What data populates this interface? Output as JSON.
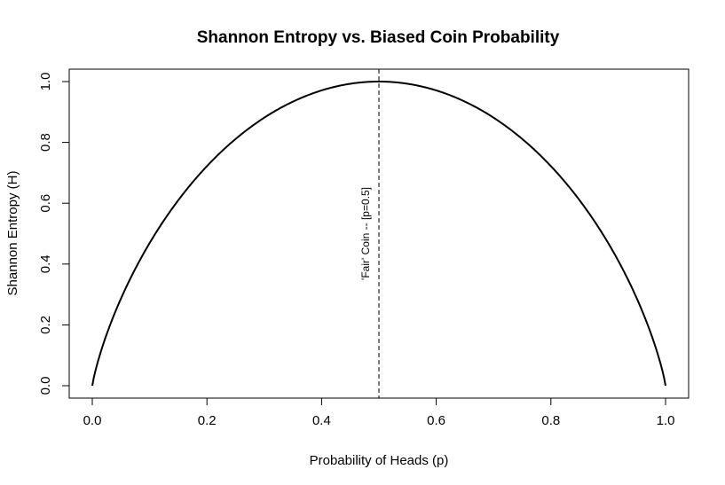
{
  "chart_data": {
    "type": "line",
    "title": "Shannon Entropy vs. Biased Coin Probability",
    "xlabel": "Probability of Heads (p)",
    "ylabel": "Shannon Entropy (H)",
    "xlim": [
      0,
      1
    ],
    "ylim": [
      0,
      1
    ],
    "xticks": [
      0.0,
      0.2,
      0.4,
      0.6,
      0.8,
      1.0
    ],
    "xtick_labels": [
      "0.0",
      "0.2",
      "0.4",
      "0.6",
      "0.8",
      "1.0"
    ],
    "yticks": [
      0.0,
      0.2,
      0.4,
      0.6,
      0.8,
      1.0
    ],
    "ytick_labels": [
      "0.0",
      "0.2",
      "0.4",
      "0.6",
      "0.8",
      "1.0"
    ],
    "grid": false,
    "series": [
      {
        "function": "binary_entropy",
        "x": [
          0.0,
          0.01,
          0.05,
          0.1,
          0.15,
          0.2,
          0.25,
          0.3,
          0.35,
          0.4,
          0.45,
          0.5,
          0.55,
          0.6,
          0.65,
          0.7,
          0.75,
          0.8,
          0.85,
          0.9,
          0.95,
          0.99,
          1.0
        ],
        "y": [
          0.0,
          0.081,
          0.286,
          0.469,
          0.61,
          0.722,
          0.811,
          0.881,
          0.934,
          0.971,
          0.993,
          1.0,
          0.993,
          0.971,
          0.934,
          0.881,
          0.811,
          0.722,
          0.61,
          0.469,
          0.286,
          0.081,
          0.0
        ],
        "color": "#000000",
        "style": "solid"
      }
    ],
    "annotations": [
      {
        "type": "vline",
        "x": 0.5,
        "style": "dashed",
        "color": "#000000",
        "label": "'Fair' Coin -- [p=0.5]",
        "label_y": 0.5
      }
    ]
  }
}
